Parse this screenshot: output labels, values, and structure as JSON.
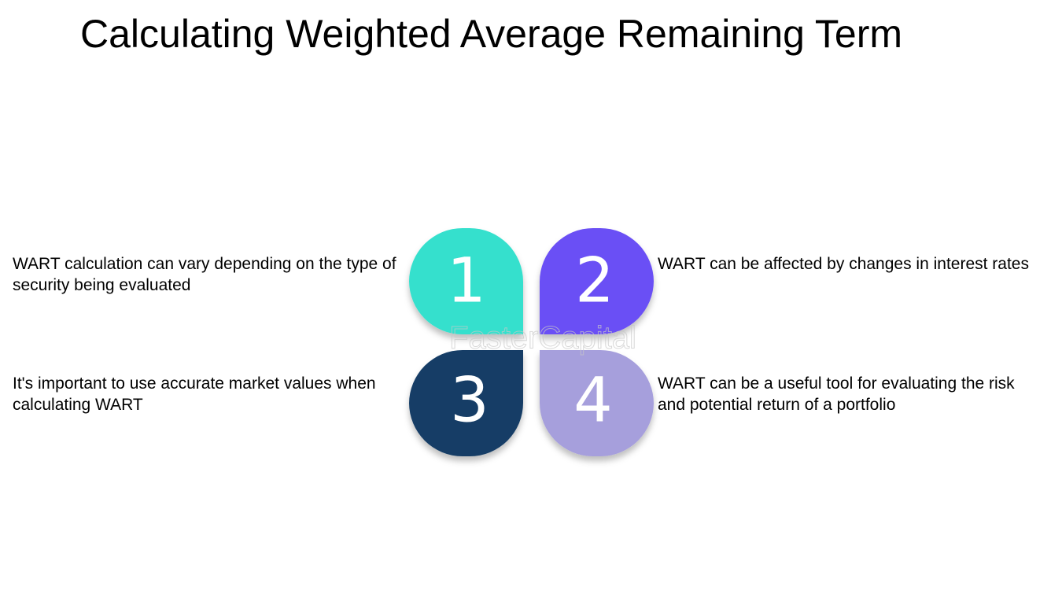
{
  "title": "Calculating Weighted Average Remaining Term",
  "watermark": "FasterCapital",
  "items": [
    {
      "number": "1",
      "text": "WART calculation can vary depending on the type of security being evaluated",
      "color": "#35e0cd"
    },
    {
      "number": "2",
      "text": "WART can be affected by changes in interest rates",
      "color": "#6a4ff5"
    },
    {
      "number": "3",
      "text": "It's important to use accurate market values when calculating WART",
      "color": "#143e66"
    },
    {
      "number": "4",
      "text": "WART can be a useful tool for evaluating the risk and potential return of a portfolio",
      "color": "#a69fdc"
    }
  ]
}
